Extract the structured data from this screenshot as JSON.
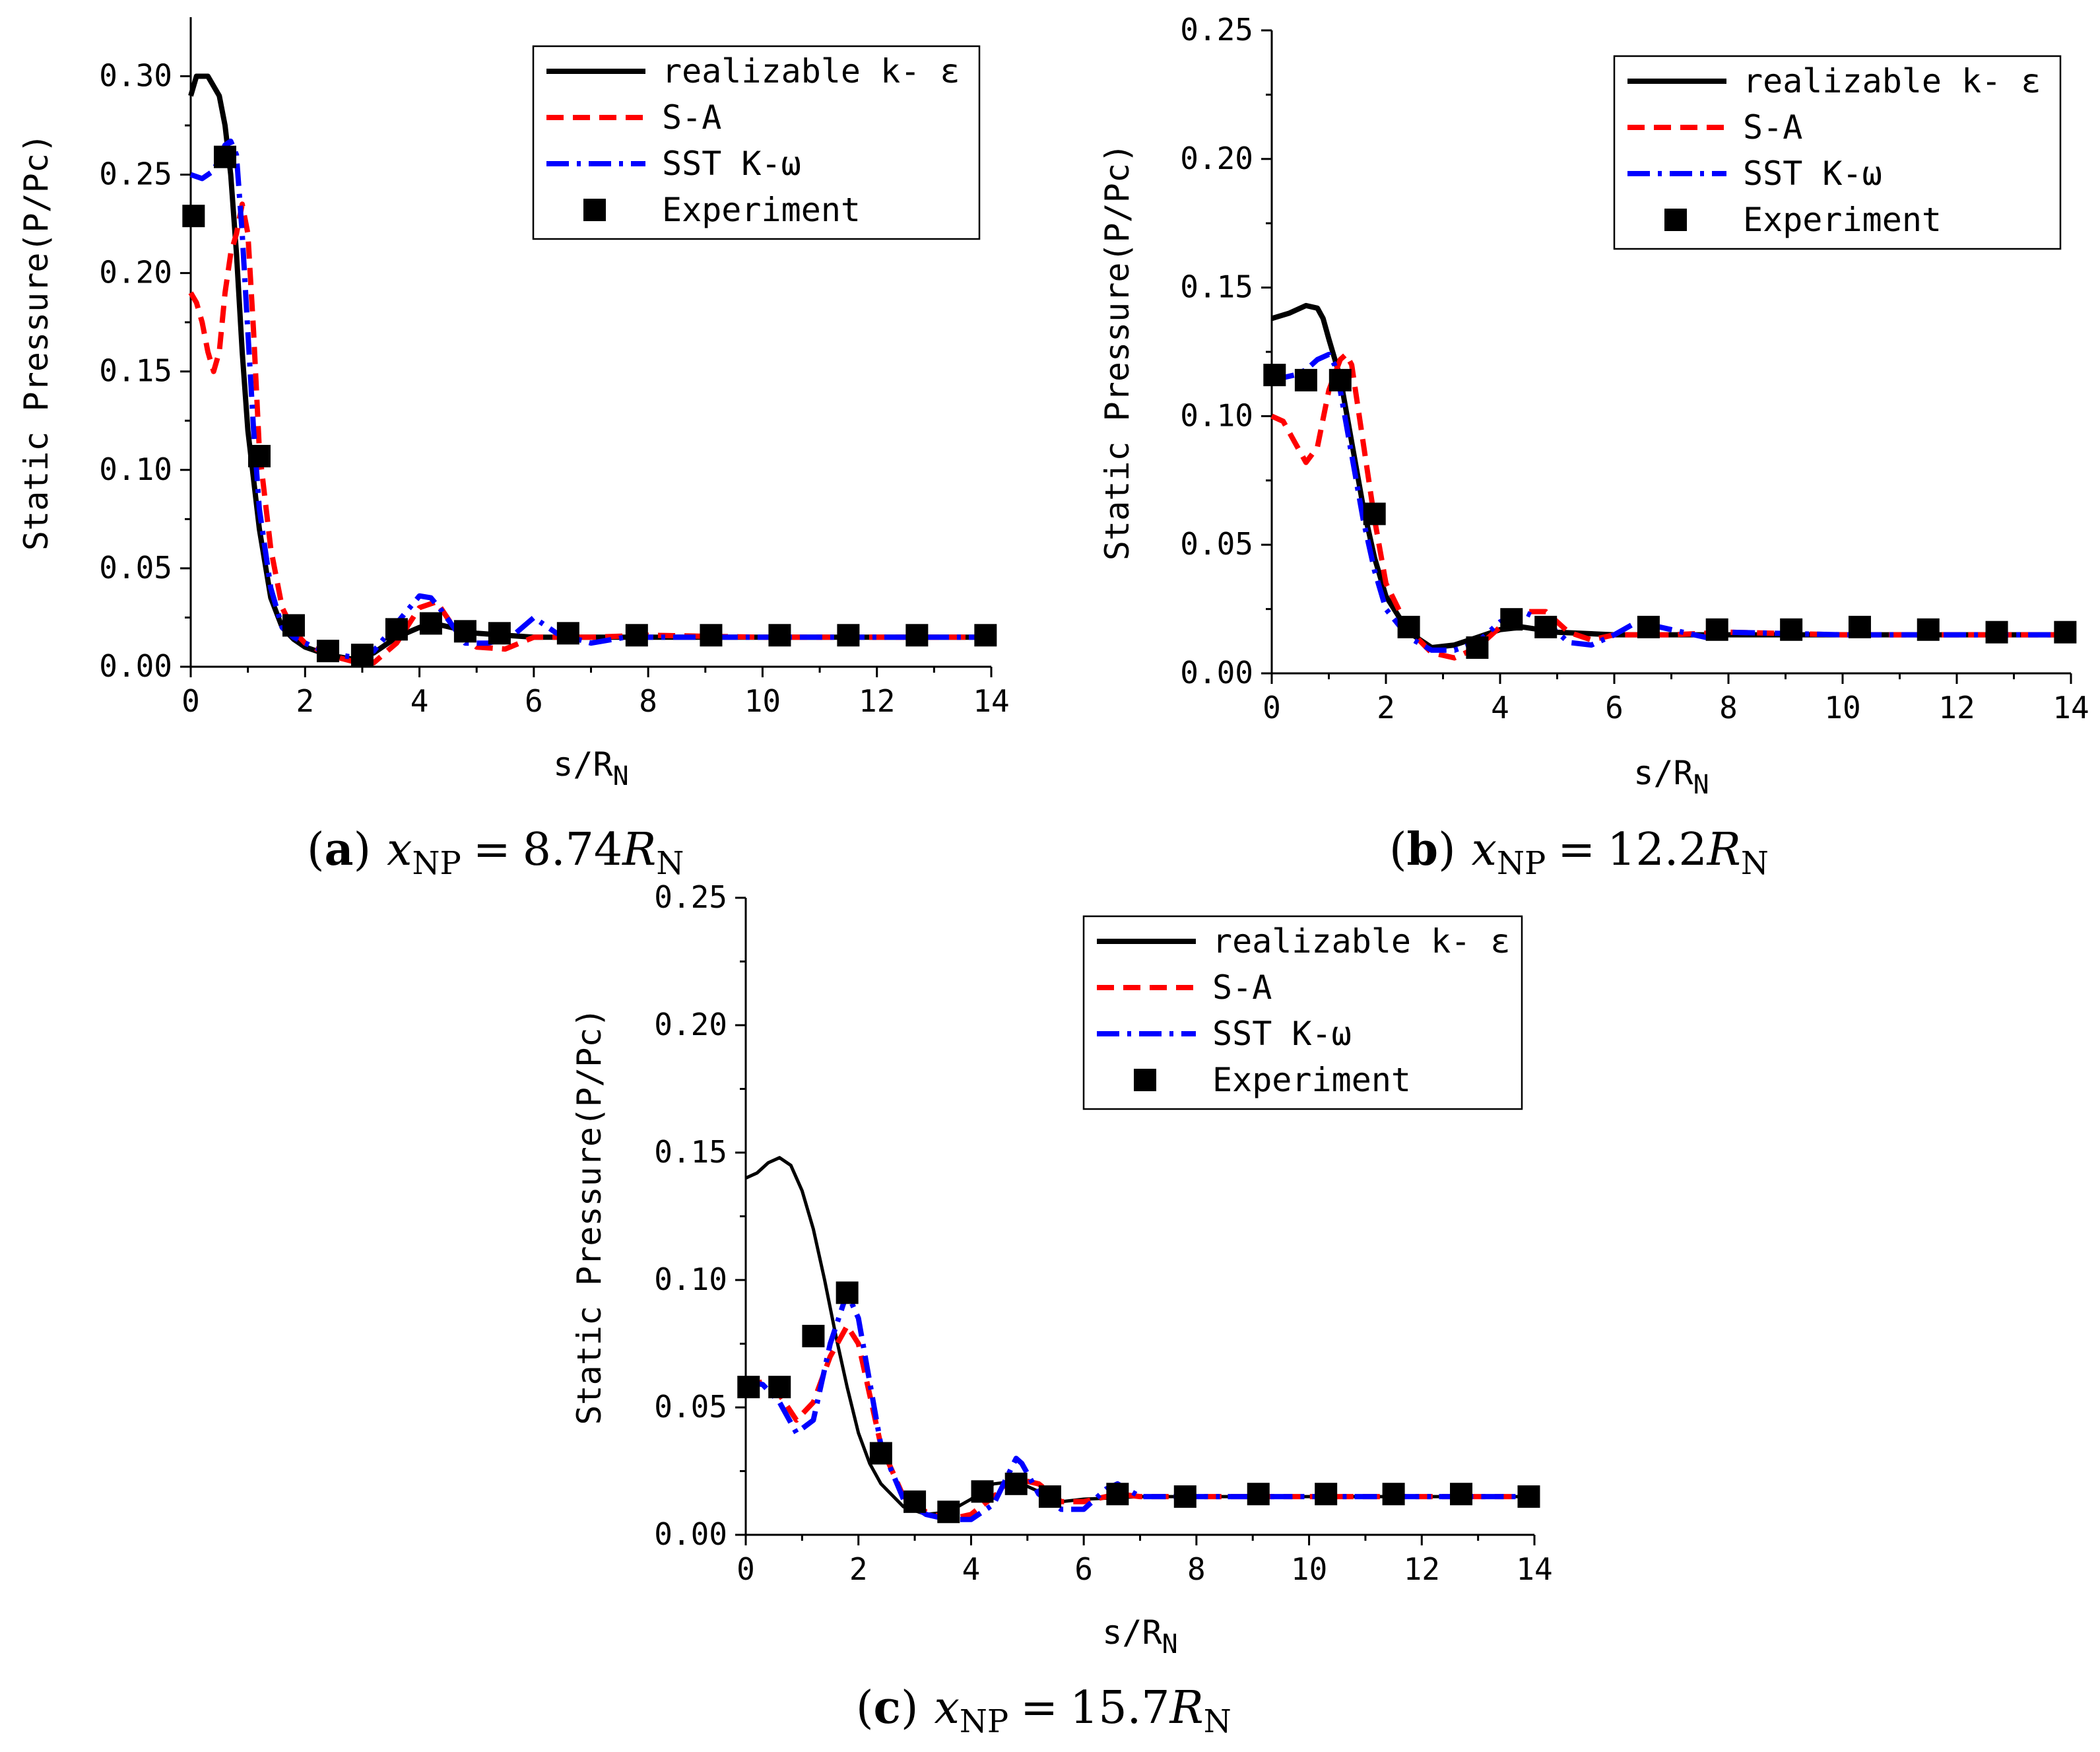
{
  "colors": {
    "realizable": "#000000",
    "sa": "#ff0000",
    "sst": "#0000ff",
    "experiment": "#000000"
  },
  "chart_data": [
    {
      "type": "line",
      "panel": "a",
      "caption": {
        "letter": "(a)",
        "var": "x",
        "sub": "NP",
        "eq": "=",
        "value": "8.74",
        "unit": "R",
        "unit_sub": "N"
      },
      "xlabel": "s/R",
      "xlabel_sub": "N",
      "ylabel": "Static Pressure(P/Pc)",
      "xlim": [
        0,
        14
      ],
      "ylim": [
        0,
        0.33
      ],
      "xticks": [
        "0",
        "2",
        "4",
        "6",
        "8",
        "10",
        "12",
        "14"
      ],
      "yticks": [
        "0.00",
        "0.05",
        "0.10",
        "0.15",
        "0.20",
        "0.25",
        "0.30"
      ],
      "legend": [
        "realizable k- ε",
        "S-A",
        "SST K-ω",
        "Experiment"
      ],
      "series": [
        {
          "name": "realizable k- ε",
          "x": [
            0,
            0.1,
            0.3,
            0.5,
            0.6,
            0.7,
            0.8,
            0.9,
            1.0,
            1.2,
            1.4,
            1.6,
            1.8,
            2.0,
            2.4,
            2.8,
            3.2,
            3.6,
            4.0,
            4.4,
            5.0,
            6.0,
            8.0,
            10.0,
            12.0,
            14.0
          ],
          "y": [
            0.29,
            0.3,
            0.3,
            0.29,
            0.275,
            0.25,
            0.21,
            0.16,
            0.12,
            0.07,
            0.035,
            0.02,
            0.014,
            0.01,
            0.006,
            0.004,
            0.007,
            0.015,
            0.02,
            0.021,
            0.017,
            0.015,
            0.015,
            0.015,
            0.015,
            0.015
          ]
        },
        {
          "name": "S-A",
          "x": [
            0,
            0.1,
            0.2,
            0.3,
            0.4,
            0.5,
            0.6,
            0.7,
            0.8,
            0.9,
            1.0,
            1.1,
            1.2,
            1.4,
            1.6,
            1.8,
            2.0,
            2.4,
            2.8,
            3.2,
            3.6,
            4.0,
            4.3,
            4.6,
            5.0,
            5.5,
            6.0,
            7.0,
            8.0,
            10.0,
            12.0,
            14.0
          ],
          "y": [
            0.19,
            0.185,
            0.175,
            0.16,
            0.15,
            0.16,
            0.19,
            0.21,
            0.22,
            0.235,
            0.22,
            0.17,
            0.11,
            0.06,
            0.03,
            0.018,
            0.012,
            0.006,
            0.003,
            0.002,
            0.012,
            0.03,
            0.033,
            0.02,
            0.01,
            0.009,
            0.015,
            0.015,
            0.016,
            0.015,
            0.015,
            0.015
          ]
        },
        {
          "name": "SST K-ω",
          "x": [
            0,
            0.2,
            0.4,
            0.6,
            0.7,
            0.8,
            0.9,
            1.0,
            1.1,
            1.2,
            1.4,
            1.6,
            1.8,
            2.0,
            2.4,
            2.8,
            3.2,
            3.6,
            4.0,
            4.2,
            4.4,
            4.8,
            5.2,
            5.6,
            6.0,
            6.4,
            7.0,
            7.6,
            8.0,
            10.0,
            12.0,
            14.0
          ],
          "y": [
            0.25,
            0.248,
            0.252,
            0.265,
            0.267,
            0.26,
            0.22,
            0.17,
            0.12,
            0.08,
            0.04,
            0.02,
            0.015,
            0.012,
            0.007,
            0.005,
            0.008,
            0.022,
            0.036,
            0.035,
            0.028,
            0.012,
            0.012,
            0.015,
            0.025,
            0.017,
            0.012,
            0.015,
            0.015,
            0.015,
            0.015,
            0.015
          ]
        },
        {
          "name": "Experiment",
          "x": [
            0.05,
            0.6,
            1.2,
            1.8,
            2.4,
            3.0,
            3.6,
            4.2,
            4.8,
            5.4,
            6.6,
            7.8,
            9.1,
            10.3,
            11.5,
            12.7,
            13.9
          ],
          "y": [
            0.229,
            0.259,
            0.107,
            0.021,
            0.008,
            0.006,
            0.019,
            0.022,
            0.018,
            0.017,
            0.017,
            0.016,
            0.016,
            0.016,
            0.016,
            0.016,
            0.016
          ]
        }
      ]
    },
    {
      "type": "line",
      "panel": "b",
      "caption": {
        "letter": "(b)",
        "var": "x",
        "sub": "NP",
        "eq": "=",
        "value": "12.2",
        "unit": "R",
        "unit_sub": "N"
      },
      "xlabel": "s/R",
      "xlabel_sub": "N",
      "ylabel": "Static Pressure(P/Pc)",
      "xlim": [
        0,
        14
      ],
      "ylim": [
        0,
        0.25
      ],
      "xticks": [
        "0",
        "2",
        "4",
        "6",
        "8",
        "10",
        "12",
        "14"
      ],
      "yticks": [
        "0.00",
        "0.05",
        "0.10",
        "0.15",
        "0.20",
        "0.25"
      ],
      "legend": [
        "realizable k- ε",
        "S-A",
        "SST K-ω",
        "Experiment"
      ],
      "series": [
        {
          "name": "realizable k- ε",
          "x": [
            0,
            0.3,
            0.6,
            0.8,
            0.9,
            1.0,
            1.2,
            1.4,
            1.6,
            1.8,
            2.0,
            2.4,
            2.8,
            3.2,
            3.6,
            4.0,
            4.4,
            5.0,
            6.0,
            8.0,
            10.0,
            12.0,
            14.0
          ],
          "y": [
            0.138,
            0.14,
            0.143,
            0.142,
            0.138,
            0.13,
            0.115,
            0.09,
            0.065,
            0.045,
            0.03,
            0.016,
            0.01,
            0.011,
            0.014,
            0.017,
            0.018,
            0.016,
            0.015,
            0.015,
            0.015,
            0.015,
            0.015
          ]
        },
        {
          "name": "S-A",
          "x": [
            0,
            0.2,
            0.4,
            0.6,
            0.8,
            1.0,
            1.2,
            1.3,
            1.4,
            1.6,
            1.8,
            2.0,
            2.4,
            2.8,
            3.2,
            3.6,
            4.0,
            4.4,
            4.8,
            5.2,
            5.6,
            6.0,
            7.0,
            8.0,
            10.0,
            12.0,
            14.0
          ],
          "y": [
            0.1,
            0.098,
            0.09,
            0.082,
            0.088,
            0.11,
            0.122,
            0.124,
            0.12,
            0.09,
            0.06,
            0.035,
            0.017,
            0.008,
            0.006,
            0.01,
            0.018,
            0.024,
            0.024,
            0.016,
            0.013,
            0.015,
            0.015,
            0.016,
            0.015,
            0.015,
            0.015
          ]
        },
        {
          "name": "SST K-ω",
          "x": [
            0,
            0.2,
            0.4,
            0.6,
            0.8,
            1.0,
            1.1,
            1.2,
            1.4,
            1.6,
            1.8,
            2.0,
            2.4,
            2.8,
            3.2,
            3.6,
            4.0,
            4.4,
            4.8,
            5.2,
            5.6,
            6.0,
            6.4,
            7.0,
            7.6,
            8.0,
            10.0,
            12.0,
            14.0
          ],
          "y": [
            0.115,
            0.115,
            0.116,
            0.118,
            0.122,
            0.124,
            0.12,
            0.11,
            0.085,
            0.06,
            0.04,
            0.025,
            0.014,
            0.009,
            0.009,
            0.012,
            0.02,
            0.024,
            0.02,
            0.012,
            0.011,
            0.015,
            0.02,
            0.017,
            0.014,
            0.016,
            0.015,
            0.015,
            0.015
          ]
        },
        {
          "name": "Experiment",
          "x": [
            0.05,
            0.6,
            1.2,
            1.8,
            2.4,
            3.6,
            4.2,
            4.8,
            6.6,
            7.8,
            9.1,
            10.3,
            11.5,
            12.7,
            13.9
          ],
          "y": [
            0.116,
            0.114,
            0.114,
            0.062,
            0.018,
            0.01,
            0.021,
            0.018,
            0.018,
            0.017,
            0.017,
            0.018,
            0.017,
            0.016,
            0.016
          ]
        }
      ]
    },
    {
      "type": "line",
      "panel": "c",
      "caption": {
        "letter": "(c)",
        "var": "x",
        "sub": "NP",
        "eq": "=",
        "value": "15.7",
        "unit": "R",
        "unit_sub": "N"
      },
      "xlabel": "s/R",
      "xlabel_sub": "N",
      "ylabel": "Static Pressure(P/Pc)",
      "xlim": [
        0,
        14
      ],
      "ylim": [
        0,
        0.25
      ],
      "xticks": [
        "0",
        "2",
        "4",
        "6",
        "8",
        "10",
        "12",
        "14"
      ],
      "yticks": [
        "0.00",
        "0.05",
        "0.10",
        "0.15",
        "0.20",
        "0.25"
      ],
      "legend": [
        "realizable k- ε",
        "S-A",
        "SST K-ω",
        "Experiment"
      ],
      "series": [
        {
          "name": "realizable k- ε",
          "x": [
            0,
            0.2,
            0.4,
            0.6,
            0.8,
            1.0,
            1.2,
            1.4,
            1.6,
            1.8,
            2.0,
            2.2,
            2.4,
            2.8,
            3.2,
            3.6,
            4.0,
            4.4,
            4.8,
            5.2,
            5.6,
            6.0,
            7.0,
            8.0,
            10.0,
            12.0,
            14.0
          ],
          "y": [
            0.14,
            0.142,
            0.146,
            0.148,
            0.145,
            0.135,
            0.12,
            0.1,
            0.078,
            0.058,
            0.04,
            0.028,
            0.02,
            0.011,
            0.008,
            0.009,
            0.014,
            0.02,
            0.021,
            0.017,
            0.013,
            0.014,
            0.015,
            0.015,
            0.015,
            0.015,
            0.015
          ]
        },
        {
          "name": "S-A",
          "x": [
            0,
            0.3,
            0.6,
            0.9,
            1.2,
            1.5,
            1.8,
            2.0,
            2.2,
            2.4,
            2.8,
            3.2,
            3.6,
            4.0,
            4.4,
            4.8,
            5.2,
            5.6,
            6.0,
            6.6,
            7.0,
            8.0,
            10.0,
            12.0,
            14.0
          ],
          "y": [
            0.058,
            0.06,
            0.055,
            0.045,
            0.052,
            0.07,
            0.082,
            0.075,
            0.055,
            0.035,
            0.015,
            0.009,
            0.006,
            0.008,
            0.015,
            0.022,
            0.02,
            0.013,
            0.013,
            0.016,
            0.015,
            0.015,
            0.015,
            0.015,
            0.015
          ]
        },
        {
          "name": "SST K-ω",
          "x": [
            0,
            0.3,
            0.6,
            0.9,
            1.2,
            1.5,
            1.8,
            2.0,
            2.2,
            2.4,
            2.8,
            3.2,
            3.6,
            4.0,
            4.4,
            4.8,
            4.9,
            5.2,
            5.6,
            6.0,
            6.4,
            6.6,
            7.0,
            8.0,
            10.0,
            12.0,
            14.0
          ],
          "y": [
            0.06,
            0.059,
            0.052,
            0.04,
            0.045,
            0.075,
            0.095,
            0.085,
            0.06,
            0.035,
            0.014,
            0.008,
            0.006,
            0.006,
            0.012,
            0.03,
            0.028,
            0.016,
            0.01,
            0.01,
            0.018,
            0.02,
            0.015,
            0.015,
            0.015,
            0.015,
            0.015
          ]
        },
        {
          "name": "Experiment",
          "x": [
            0.05,
            0.6,
            1.2,
            1.8,
            2.4,
            3.0,
            3.6,
            4.2,
            4.8,
            5.4,
            6.6,
            7.8,
            9.1,
            10.3,
            11.5,
            12.7,
            13.9
          ],
          "y": [
            0.058,
            0.058,
            0.078,
            0.095,
            0.032,
            0.013,
            0.009,
            0.017,
            0.02,
            0.015,
            0.016,
            0.015,
            0.016,
            0.016,
            0.016,
            0.016,
            0.015
          ]
        }
      ]
    }
  ]
}
